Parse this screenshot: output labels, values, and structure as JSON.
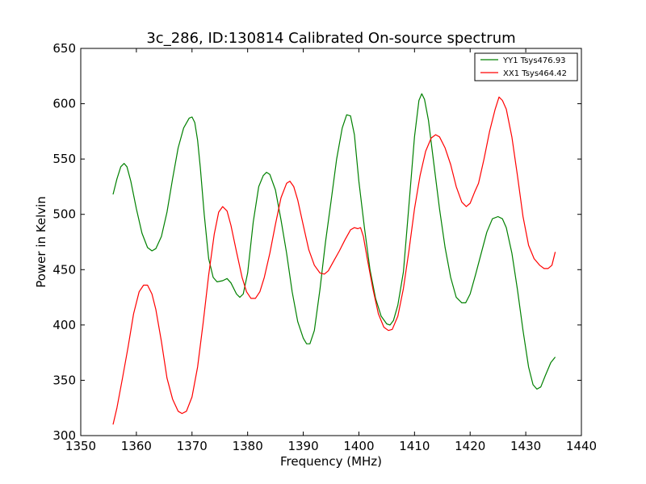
{
  "chart_data": {
    "type": "line",
    "title": "3c_286, ID:130814 Calibrated On-source spectrum",
    "xlabel": "Frequency (MHz)",
    "ylabel": "Power in Kelvin",
    "xlim": [
      1350,
      1440
    ],
    "ylim": [
      300,
      650
    ],
    "xticks": [
      1350,
      1360,
      1370,
      1380,
      1390,
      1400,
      1410,
      1420,
      1430,
      1440
    ],
    "yticks": [
      300,
      350,
      400,
      450,
      500,
      550,
      600,
      650
    ],
    "grid": false,
    "legend_position": "top-right",
    "series": [
      {
        "name": "YY1 Tsys476.93",
        "color": "#008000",
        "points": [
          [
            1355.8,
            518
          ],
          [
            1356.5,
            532
          ],
          [
            1357.2,
            543
          ],
          [
            1357.8,
            546
          ],
          [
            1358.3,
            543
          ],
          [
            1359.0,
            530
          ],
          [
            1360.0,
            505
          ],
          [
            1361.0,
            483
          ],
          [
            1362.0,
            470
          ],
          [
            1362.8,
            467
          ],
          [
            1363.5,
            469
          ],
          [
            1364.5,
            480
          ],
          [
            1365.5,
            502
          ],
          [
            1366.5,
            532
          ],
          [
            1367.5,
            560
          ],
          [
            1368.5,
            578
          ],
          [
            1369.5,
            587
          ],
          [
            1370.0,
            588
          ],
          [
            1370.5,
            583
          ],
          [
            1371.0,
            567
          ],
          [
            1371.5,
            542
          ],
          [
            1372.2,
            500
          ],
          [
            1373.0,
            460
          ],
          [
            1373.8,
            443
          ],
          [
            1374.5,
            439
          ],
          [
            1375.5,
            440
          ],
          [
            1376.3,
            442
          ],
          [
            1377.0,
            438
          ],
          [
            1378.0,
            428
          ],
          [
            1378.6,
            425
          ],
          [
            1379.2,
            428
          ],
          [
            1380.0,
            447
          ],
          [
            1381.0,
            493
          ],
          [
            1382.0,
            525
          ],
          [
            1382.8,
            535
          ],
          [
            1383.4,
            538
          ],
          [
            1384.0,
            536
          ],
          [
            1385.0,
            522
          ],
          [
            1386.0,
            495
          ],
          [
            1387.0,
            465
          ],
          [
            1388.0,
            430
          ],
          [
            1389.0,
            403
          ],
          [
            1390.0,
            388
          ],
          [
            1390.6,
            383
          ],
          [
            1391.2,
            383
          ],
          [
            1392.0,
            395
          ],
          [
            1393.0,
            432
          ],
          [
            1394.0,
            475
          ],
          [
            1395.0,
            512
          ],
          [
            1396.0,
            550
          ],
          [
            1397.0,
            578
          ],
          [
            1397.8,
            590
          ],
          [
            1398.5,
            589
          ],
          [
            1399.2,
            572
          ],
          [
            1400.0,
            530
          ],
          [
            1401.0,
            488
          ],
          [
            1402.0,
            450
          ],
          [
            1403.0,
            424
          ],
          [
            1404.0,
            408
          ],
          [
            1405.0,
            401
          ],
          [
            1405.6,
            400
          ],
          [
            1406.2,
            404
          ],
          [
            1407.0,
            418
          ],
          [
            1408.0,
            448
          ],
          [
            1409.0,
            508
          ],
          [
            1410.0,
            570
          ],
          [
            1410.8,
            603
          ],
          [
            1411.3,
            609
          ],
          [
            1411.8,
            604
          ],
          [
            1412.5,
            585
          ],
          [
            1413.5,
            545
          ],
          [
            1414.5,
            505
          ],
          [
            1415.5,
            470
          ],
          [
            1416.5,
            443
          ],
          [
            1417.5,
            425
          ],
          [
            1418.5,
            420
          ],
          [
            1419.2,
            420
          ],
          [
            1420.0,
            428
          ],
          [
            1421.0,
            446
          ],
          [
            1422.0,
            465
          ],
          [
            1423.0,
            484
          ],
          [
            1424.0,
            496
          ],
          [
            1425.0,
            498
          ],
          [
            1425.8,
            496
          ],
          [
            1426.5,
            488
          ],
          [
            1427.5,
            465
          ],
          [
            1428.5,
            432
          ],
          [
            1429.5,
            395
          ],
          [
            1430.5,
            362
          ],
          [
            1431.3,
            346
          ],
          [
            1432.0,
            342
          ],
          [
            1432.7,
            344
          ],
          [
            1433.5,
            354
          ],
          [
            1434.5,
            366
          ],
          [
            1435.3,
            371
          ]
        ]
      },
      {
        "name": "XX1 Tsys464.42",
        "color": "#ff0000",
        "points": [
          [
            1355.8,
            310
          ],
          [
            1356.5,
            325
          ],
          [
            1357.5,
            352
          ],
          [
            1358.5,
            380
          ],
          [
            1359.5,
            410
          ],
          [
            1360.5,
            430
          ],
          [
            1361.3,
            436
          ],
          [
            1362.0,
            436
          ],
          [
            1362.8,
            428
          ],
          [
            1363.5,
            414
          ],
          [
            1364.5,
            385
          ],
          [
            1365.5,
            352
          ],
          [
            1366.5,
            333
          ],
          [
            1367.5,
            322
          ],
          [
            1368.2,
            320
          ],
          [
            1369.0,
            322
          ],
          [
            1370.0,
            335
          ],
          [
            1371.0,
            362
          ],
          [
            1372.0,
            402
          ],
          [
            1373.0,
            445
          ],
          [
            1374.0,
            482
          ],
          [
            1374.8,
            502
          ],
          [
            1375.5,
            507
          ],
          [
            1376.3,
            503
          ],
          [
            1377.0,
            490
          ],
          [
            1378.0,
            466
          ],
          [
            1379.0,
            443
          ],
          [
            1379.8,
            430
          ],
          [
            1380.6,
            424
          ],
          [
            1381.4,
            424
          ],
          [
            1382.2,
            430
          ],
          [
            1383.0,
            443
          ],
          [
            1384.0,
            465
          ],
          [
            1385.0,
            491
          ],
          [
            1386.0,
            515
          ],
          [
            1387.0,
            528
          ],
          [
            1387.6,
            530
          ],
          [
            1388.3,
            525
          ],
          [
            1389.0,
            513
          ],
          [
            1390.0,
            490
          ],
          [
            1391.0,
            468
          ],
          [
            1392.0,
            454
          ],
          [
            1393.0,
            447
          ],
          [
            1393.8,
            446
          ],
          [
            1394.5,
            449
          ],
          [
            1395.5,
            458
          ],
          [
            1396.5,
            467
          ],
          [
            1397.5,
            477
          ],
          [
            1398.5,
            486
          ],
          [
            1399.2,
            488
          ],
          [
            1399.8,
            487
          ],
          [
            1400.3,
            488
          ],
          [
            1400.8,
            480
          ],
          [
            1401.5,
            460
          ],
          [
            1402.5,
            433
          ],
          [
            1403.5,
            410
          ],
          [
            1404.5,
            398
          ],
          [
            1405.3,
            395
          ],
          [
            1406.0,
            396
          ],
          [
            1407.0,
            408
          ],
          [
            1408.0,
            433
          ],
          [
            1409.0,
            467
          ],
          [
            1410.0,
            505
          ],
          [
            1411.0,
            535
          ],
          [
            1412.0,
            557
          ],
          [
            1413.0,
            569
          ],
          [
            1413.8,
            572
          ],
          [
            1414.5,
            570
          ],
          [
            1415.5,
            560
          ],
          [
            1416.5,
            545
          ],
          [
            1417.5,
            525
          ],
          [
            1418.5,
            511
          ],
          [
            1419.3,
            507
          ],
          [
            1420.0,
            510
          ],
          [
            1420.8,
            520
          ],
          [
            1421.5,
            528
          ],
          [
            1422.5,
            550
          ],
          [
            1423.5,
            575
          ],
          [
            1424.5,
            595
          ],
          [
            1425.2,
            606
          ],
          [
            1425.8,
            603
          ],
          [
            1426.5,
            595
          ],
          [
            1427.5,
            570
          ],
          [
            1428.5,
            535
          ],
          [
            1429.5,
            498
          ],
          [
            1430.5,
            472
          ],
          [
            1431.5,
            460
          ],
          [
            1432.5,
            454
          ],
          [
            1433.3,
            451
          ],
          [
            1434.0,
            451
          ],
          [
            1434.7,
            454
          ],
          [
            1435.3,
            466
          ]
        ]
      }
    ]
  }
}
